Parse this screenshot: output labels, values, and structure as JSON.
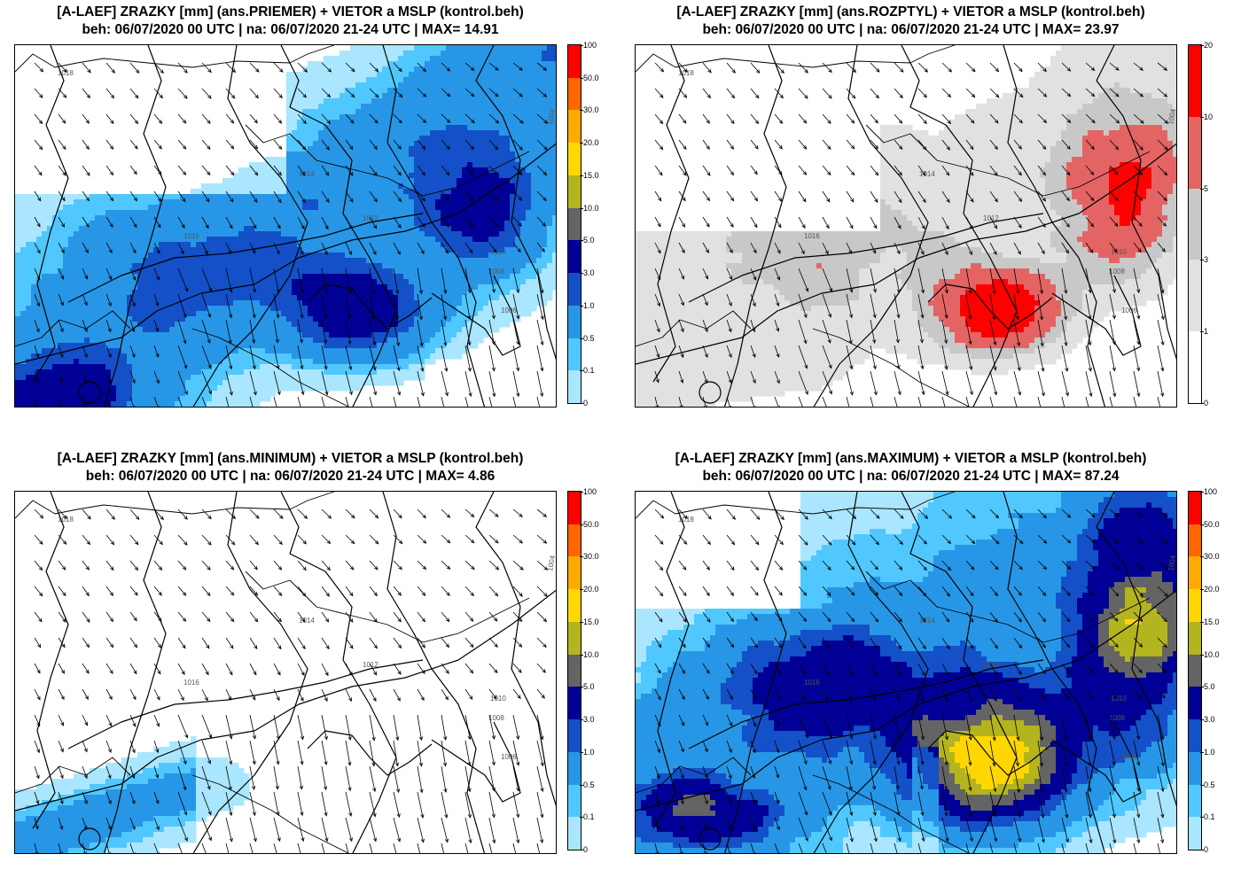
{
  "panels": [
    {
      "id": "priemer",
      "title_line1": "[A-LAEF] ZRAZKY [mm] (ans.PRIEMER) + VIETOR a MSLP (kontrol.beh)",
      "title_line2": "beh: 06/07/2020 00 UTC | na: 06/07/2020 21-24 UTC | MAX= 14.91",
      "scale": "precip",
      "field": "mean"
    },
    {
      "id": "rozptyl",
      "title_line1": "[A-LAEF] ZRAZKY [mm] (ans.ROZPTYL) + VIETOR a MSLP (kontrol.beh)",
      "title_line2": "beh: 06/07/2020 00 UTC | na: 06/07/2020 21-24 UTC | MAX= 23.97",
      "scale": "spread",
      "field": "spread"
    },
    {
      "id": "minimum",
      "title_line1": "[A-LAEF] ZRAZKY [mm] (ans.MINIMUM) + VIETOR a MSLP (kontrol.beh)",
      "title_line2": "beh: 06/07/2020 00 UTC | na: 06/07/2020 21-24 UTC | MAX= 4.86",
      "scale": "precip",
      "field": "minimum"
    },
    {
      "id": "maximum",
      "title_line1": "[A-LAEF] ZRAZKY [mm] (ans.MAXIMUM) + VIETOR a MSLP (kontrol.beh)",
      "title_line2": "beh: 06/07/2020 00 UTC | na: 06/07/2020 21-24 UTC | MAX= 87.24",
      "scale": "precip",
      "field": "maximum"
    }
  ],
  "scales": {
    "precip": {
      "ticks": [
        "100",
        "50.0",
        "30.0",
        "20.0",
        "15.0",
        "10.0",
        "5.0",
        "3.0",
        "1.0",
        "0.5",
        "0.1",
        "0"
      ],
      "colors": [
        "#ff0000",
        "#ff6600",
        "#ffaa00",
        "#ffd700",
        "#b4b41e",
        "#646464",
        "#000096",
        "#1450c8",
        "#2896e6",
        "#50c8ff",
        "#aae6ff"
      ]
    },
    "spread": {
      "ticks": [
        "20",
        "10",
        "5",
        "3",
        "1",
        "0"
      ],
      "colors": [
        "#ff0000",
        "#e46464",
        "#c8c8c8",
        "#e1e1e1",
        "#ffffff"
      ]
    }
  },
  "isobar_labels": [
    "1018",
    "1016",
    "1014",
    "1012",
    "1010",
    "1008",
    "1006",
    "1004"
  ]
}
